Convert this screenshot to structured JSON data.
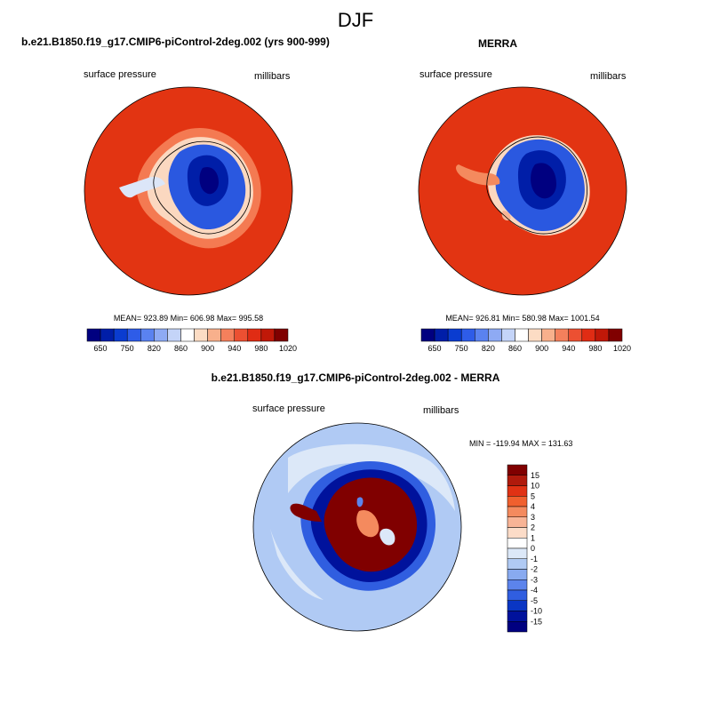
{
  "figure": {
    "title": "DJF"
  },
  "panels": [
    {
      "title": "b.e21.B1850.f19_g17.CMIP6-piControl-2deg.002 (yrs 900-999)",
      "left_label": "surface pressure",
      "right_label": "millibars",
      "stats": "MEAN= 923.89  Min= 606.98  Max= 995.58"
    },
    {
      "title": "MERRA",
      "left_label": "surface pressure",
      "right_label": "millibars",
      "stats": "MEAN= 926.81  Min= 580.98  Max= 1001.54"
    },
    {
      "title": "b.e21.B1850.f19_g17.CMIP6-piControl-2deg.002 - MERRA",
      "left_label": "surface pressure",
      "right_label": "millibars",
      "stats": "MIN = -119.94 MAX = 131.63"
    }
  ],
  "colorbar_abs": {
    "tick_labels": [
      "650",
      "750",
      "820",
      "860",
      "900",
      "940",
      "980",
      "1020"
    ],
    "colors": [
      "#000080",
      "#001ea8",
      "#0a3cd0",
      "#2e5ce8",
      "#5a82f0",
      "#8eaaf4",
      "#c4d4f8",
      "#ffffff",
      "#fcdcc4",
      "#f8b08c",
      "#f4805c",
      "#ec5032",
      "#e02c14",
      "#c01808",
      "#800000"
    ]
  },
  "colorbar_diff": {
    "tick_labels": [
      "15",
      "10",
      "5",
      "4",
      "3",
      "2",
      "1",
      "0",
      "-1",
      "-2",
      "-3",
      "-4",
      "-5",
      "-10",
      "-15"
    ],
    "colors": [
      "#800000",
      "#b01a0c",
      "#e03214",
      "#f0602e",
      "#f48a5e",
      "#f8b496",
      "#fcdcc8",
      "#ffffff",
      "#dce8f8",
      "#b0caf4",
      "#88aaf0",
      "#5c84ec",
      "#305ee0",
      "#0a36c4",
      "#00129c",
      "#000080"
    ]
  }
}
